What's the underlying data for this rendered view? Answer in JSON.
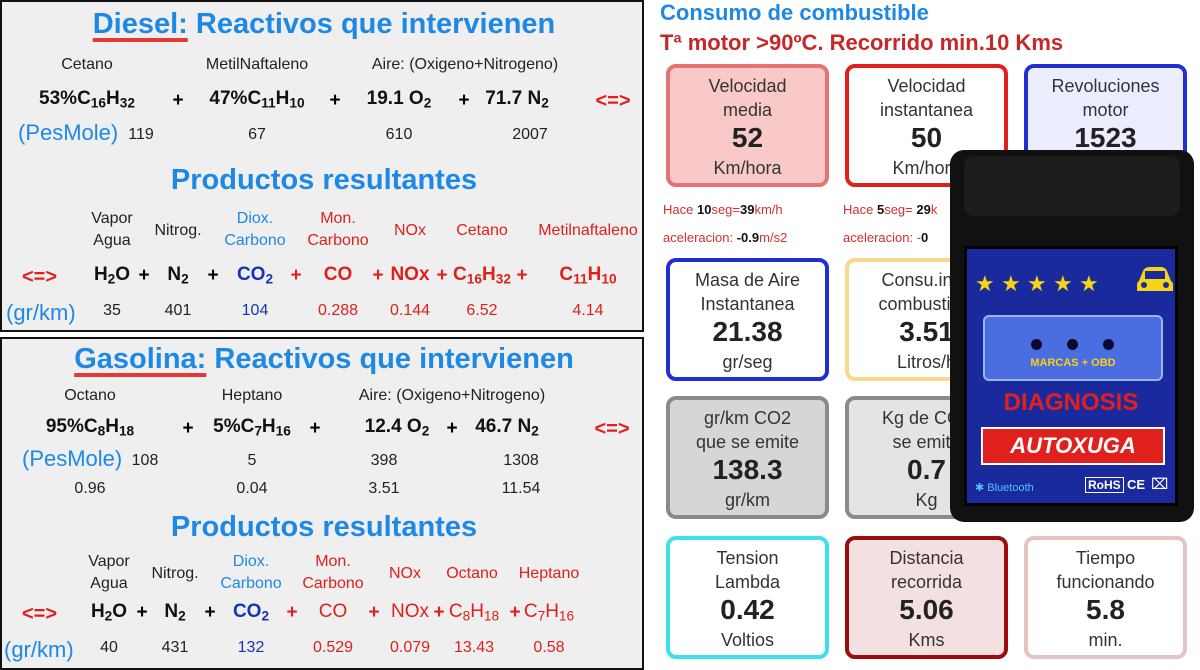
{
  "diesel": {
    "fuel": "Diesel:",
    "title_rest": " Reactivos que intervienen",
    "reactant_labels": [
      "Cetano",
      "MetilNaftaleno",
      "Aire: (Oxigeno+Nitrogeno)"
    ],
    "reactants": [
      {
        "pre": "53%C",
        "s1": "16",
        "mid": "H",
        "s2": "32"
      },
      {
        "pre": "47%C",
        "s1": "11",
        "mid": "H",
        "s2": "10"
      },
      {
        "pre": "19.1 O",
        "s1": "2"
      },
      {
        "pre": "71.7 N",
        "s1": "2"
      }
    ],
    "plus": "+",
    "arrow": "<=>",
    "pesmole_label": "(PesMole)",
    "pesmole": [
      "119",
      "67",
      "610",
      "2007"
    ],
    "products_title": "Productos resultantes",
    "product_headers": [
      [
        "Vapor",
        "Agua"
      ],
      [
        "Nitrog."
      ],
      [
        "Diox.",
        "Carbono"
      ],
      [
        "Mon.",
        "Carbono"
      ],
      [
        "NOx"
      ],
      [
        "Cetano"
      ],
      [
        "Metilnaftaleno"
      ]
    ],
    "products": [
      {
        "pre": "H",
        "s1": "2",
        "mid": "O"
      },
      {
        "pre": "N",
        "s1": "2"
      },
      {
        "pre": "CO",
        "s1": "2"
      },
      {
        "pre": "CO"
      },
      {
        "pre": "NOx"
      },
      {
        "pre": "C",
        "s1": "16",
        "mid": "H",
        "s2": "32"
      },
      {
        "pre": "C",
        "s1": "11",
        "mid": "H",
        "s2": "10"
      }
    ],
    "gram_label": "(gr/km)",
    "grams": [
      "35",
      "401",
      "104",
      "0.288",
      "0.144",
      "6.52",
      "4.14"
    ]
  },
  "gasolina": {
    "fuel": "Gasolina:",
    "title_rest": " Reactivos que intervienen",
    "reactant_labels": [
      "Octano",
      "Heptano",
      "Aire: (Oxigeno+Nitrogeno)"
    ],
    "reactants": [
      {
        "pre": "95%C",
        "s1": "8",
        "mid": "H",
        "s2": "18"
      },
      {
        "pre": "5%C",
        "s1": "7",
        "mid": "H",
        "s2": "16"
      },
      {
        "pre": "12.4 O",
        "s1": "2"
      },
      {
        "pre": "46.7 N",
        "s1": "2"
      }
    ],
    "plus": "+",
    "arrow": "<=>",
    "pesmole_label": "(PesMole)",
    "pesmole": [
      "108",
      "5",
      "398",
      "1308"
    ],
    "extra": [
      "0.96",
      "0.04",
      "3.51",
      "11.54"
    ],
    "products_title": "Productos resultantes",
    "product_headers": [
      [
        "Vapor",
        "Agua"
      ],
      [
        "Nitrog."
      ],
      [
        "Diox.",
        "Carbono"
      ],
      [
        "Mon.",
        "Carbono"
      ],
      [
        "NOx"
      ],
      [
        "Octano"
      ],
      [
        "Heptano"
      ]
    ],
    "products": [
      {
        "pre": "H",
        "s1": "2",
        "mid": "O"
      },
      {
        "pre": "N",
        "s1": "2"
      },
      {
        "pre": "CO",
        "s1": "2"
      },
      {
        "pre": "CO"
      },
      {
        "pre": "NOx"
      },
      {
        "pre": "C",
        "s1": "8",
        "mid": "H",
        "s2": "18"
      },
      {
        "pre": "C",
        "s1": "7",
        "mid": "H",
        "s2": "16"
      }
    ],
    "gram_label": "(gr/km)",
    "grams": [
      "40",
      "431",
      "132",
      "0.529",
      "0.079",
      "13.43",
      "0.58"
    ]
  },
  "dashboard": {
    "title": "Consumo de combustible",
    "subtitle": "Tª motor >90ºC.  Recorrido min.10 Kms",
    "cards": [
      {
        "label": [
          "Velocidad",
          "media"
        ],
        "value": "52",
        "unit": "Km/hora",
        "color": "#e57373",
        "bg": "#f9c9c9"
      },
      {
        "label": [
          "Velocidad",
          "instantanea"
        ],
        "value": "50",
        "unit": "Km/hora",
        "color": "#e0201c",
        "bg": "#ffffff"
      },
      {
        "label": [
          "Revoluciones",
          "motor"
        ],
        "value": "1523",
        "unit": "",
        "color": "#1f2fd1",
        "bg": "#eceeff"
      },
      {
        "label": [
          "Masa de Aire",
          "Instantanea"
        ],
        "value": "21.38",
        "unit": "gr/seg",
        "color": "#1f2fd1",
        "bg": "#ffffff"
      },
      {
        "label": [
          "Consu.inst.",
          "combustible"
        ],
        "value": "3.51",
        "unit": "Litros/h",
        "color": "#f6d98a",
        "bg": "#ffffff"
      },
      {
        "label": [
          "",
          ""
        ],
        "value": "",
        "unit": "",
        "color": "#7a7a7a",
        "bg": "#f0f0f0"
      },
      {
        "label": [
          "gr/km CO2",
          "que se emite"
        ],
        "value": "138.3",
        "unit": "gr/km",
        "color": "#8a8a8a",
        "bg": "#d6d6d6"
      },
      {
        "label": [
          "Kg de CO2",
          "se emite"
        ],
        "value": "0.7",
        "unit": "Kg",
        "color": "#8a8a8a",
        "bg": "#e4e4e4"
      },
      {
        "label": [
          "",
          ""
        ],
        "value": "",
        "unit": "",
        "color": "#8a8a8a",
        "bg": "#e4e4e4"
      },
      {
        "label": [
          "Tension",
          "Lambda"
        ],
        "value": "0.42",
        "unit": "Voltios",
        "color": "#3fe0ee",
        "bg": "#ffffff"
      },
      {
        "label": [
          "Distancia",
          "recorrida"
        ],
        "value": "5.06",
        "unit": "Kms",
        "color": "#9b0c0c",
        "bg": "#f3e1e1"
      },
      {
        "label": [
          "Tiempo",
          "funcionando"
        ],
        "value": "5.8",
        "unit": "min.",
        "color": "#e5c3c3",
        "bg": "#ffffff"
      }
    ],
    "notes": [
      {
        "a": "Hace ",
        "b": "10",
        "c": "seg=",
        "d": "39",
        "e": "km/h"
      },
      {
        "a": "aceleracion: ",
        "b": "-0.9",
        "c": "m/s2",
        "d": "",
        "e": ""
      },
      {
        "a": "Hace ",
        "b": "5",
        "c": "seg= ",
        "d": "29",
        "e": "k"
      },
      {
        "a": "aceleracion: -",
        "b": "0",
        "c": "",
        "d": "",
        "e": ""
      }
    ]
  },
  "device": {
    "stars": "★★★★★",
    "car": "🚗",
    "marcas": "MARCAS + OBD",
    "diagnosis": "DIAGNOSIS",
    "brand": "AUTOXUGA",
    "bluetooth": "Bluetooth",
    "rohs": "RoHS",
    "ce": "CE",
    "bin": "⌧"
  }
}
